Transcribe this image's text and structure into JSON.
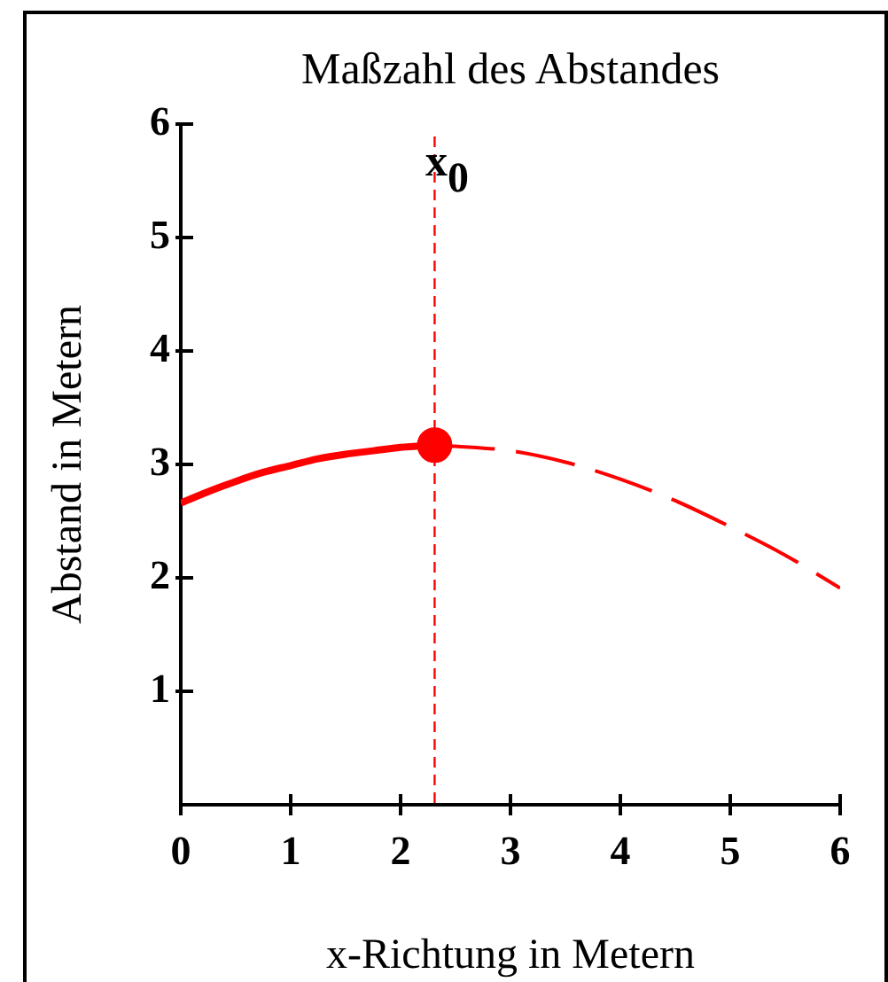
{
  "chart_data": {
    "type": "line",
    "title": "Maßzahl des Abstandes",
    "xlabel": "x-Richtung in Metern",
    "ylabel": "Abstand in Metern",
    "xlim": [
      0,
      6
    ],
    "ylim": [
      0,
      6
    ],
    "xticks": [
      0,
      1,
      2,
      3,
      4,
      5,
      6
    ],
    "yticks": [
      1,
      2,
      3,
      4,
      5,
      6
    ],
    "series": [
      {
        "color": "#ff0000",
        "line_style": "solid",
        "x": [
          0,
          0.25,
          0.5,
          0.75,
          1,
          1.25,
          1.5,
          1.75,
          2,
          2.31
        ],
        "values": [
          2.66,
          2.76,
          2.85,
          2.93,
          2.99,
          3.05,
          3.09,
          3.12,
          3.15,
          3.17
        ]
      },
      {
        "color": "#ff0000",
        "line_style": "dashed",
        "x": [
          2.31,
          2.5,
          3,
          3.5,
          4,
          4.5,
          5,
          5.5,
          6
        ],
        "values": [
          3.17,
          3.16,
          3.12,
          3.02,
          2.87,
          2.68,
          2.45,
          2.2,
          1.91
        ]
      },
      {
        "type": "scatter",
        "color": "#ff0000",
        "marker": "circle",
        "x": [
          2.31
        ],
        "values": [
          3.17
        ]
      }
    ],
    "ref_lines": [
      {
        "axis": "x",
        "value": 2.31,
        "label": "x₀",
        "color": "#ff0000",
        "line_style": "dashed"
      }
    ]
  }
}
